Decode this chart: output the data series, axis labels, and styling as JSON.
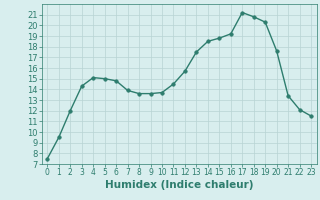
{
  "x": [
    0,
    1,
    2,
    3,
    4,
    5,
    6,
    7,
    8,
    9,
    10,
    11,
    12,
    13,
    14,
    15,
    16,
    17,
    18,
    19,
    20,
    21,
    22,
    23
  ],
  "y": [
    7.5,
    9.5,
    12,
    14.3,
    15.1,
    15.0,
    14.8,
    13.9,
    13.6,
    13.6,
    13.7,
    14.5,
    15.7,
    17.5,
    18.5,
    18.8,
    19.2,
    21.2,
    20.8,
    20.3,
    17.6,
    13.4,
    12.1,
    11.5
  ],
  "line_color": "#2e7d6e",
  "marker": "o",
  "marker_size": 2.5,
  "line_width": 1.0,
  "bg_color": "#d8eeee",
  "grid_color": "#b8d4d4",
  "xlabel": "Humidex (Indice chaleur)",
  "ylim": [
    7,
    22
  ],
  "xlim": [
    -0.5,
    23.5
  ],
  "yticks": [
    7,
    8,
    9,
    10,
    11,
    12,
    13,
    14,
    15,
    16,
    17,
    18,
    19,
    20,
    21
  ],
  "xticks": [
    0,
    1,
    2,
    3,
    4,
    5,
    6,
    7,
    8,
    9,
    10,
    11,
    12,
    13,
    14,
    15,
    16,
    17,
    18,
    19,
    20,
    21,
    22,
    23
  ],
  "tick_color": "#2e7d6e",
  "label_color": "#2e7d6e",
  "xlabel_fontsize": 7.5,
  "xtick_fontsize": 5.5,
  "ytick_fontsize": 6.0
}
